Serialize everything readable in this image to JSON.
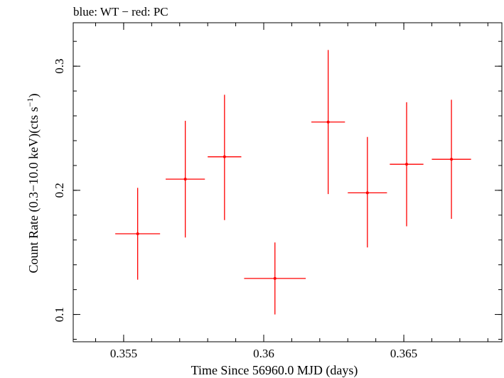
{
  "chart_data": {
    "type": "scatter",
    "title": "blue: WT − red: PC",
    "xlabel": "Time Since 56960.0 MJD (days)",
    "ylabel_main": "Count Rate (0.3−10.0 keV)(cts s",
    "ylabel_sup": "−1",
    "ylabel_close": ")",
    "xlim": [
      0.3532,
      0.3685
    ],
    "ylim": [
      0.078,
      0.335
    ],
    "x_ticks": [
      {
        "value": 0.355,
        "label": "0.355"
      },
      {
        "value": 0.36,
        "label": "0.36"
      },
      {
        "value": 0.365,
        "label": "0.365"
      }
    ],
    "y_ticks": [
      {
        "value": 0.1,
        "label": "0.1"
      },
      {
        "value": 0.2,
        "label": "0.2"
      },
      {
        "value": 0.3,
        "label": "0.3"
      }
    ],
    "color": "#ff0000",
    "series": [
      {
        "name": "PC",
        "points": [
          {
            "x": 0.3555,
            "xerr": 0.0008,
            "y": 0.165,
            "ylo": 0.128,
            "yhi": 0.202
          },
          {
            "x": 0.3572,
            "xerr": 0.0007,
            "y": 0.209,
            "ylo": 0.162,
            "yhi": 0.256
          },
          {
            "x": 0.3586,
            "xerr": 0.0006,
            "y": 0.227,
            "ylo": 0.176,
            "yhi": 0.277
          },
          {
            "x": 0.3604,
            "xerr": 0.0011,
            "y": 0.129,
            "ylo": 0.1,
            "yhi": 0.158
          },
          {
            "x": 0.3623,
            "xerr": 0.0006,
            "y": 0.255,
            "ylo": 0.197,
            "yhi": 0.313
          },
          {
            "x": 0.3637,
            "xerr": 0.0007,
            "y": 0.198,
            "ylo": 0.154,
            "yhi": 0.243
          },
          {
            "x": 0.3651,
            "xerr": 0.0006,
            "y": 0.221,
            "ylo": 0.171,
            "yhi": 0.271
          },
          {
            "x": 0.3667,
            "xerr": 0.0007,
            "y": 0.225,
            "ylo": 0.177,
            "yhi": 0.273
          }
        ]
      }
    ]
  }
}
